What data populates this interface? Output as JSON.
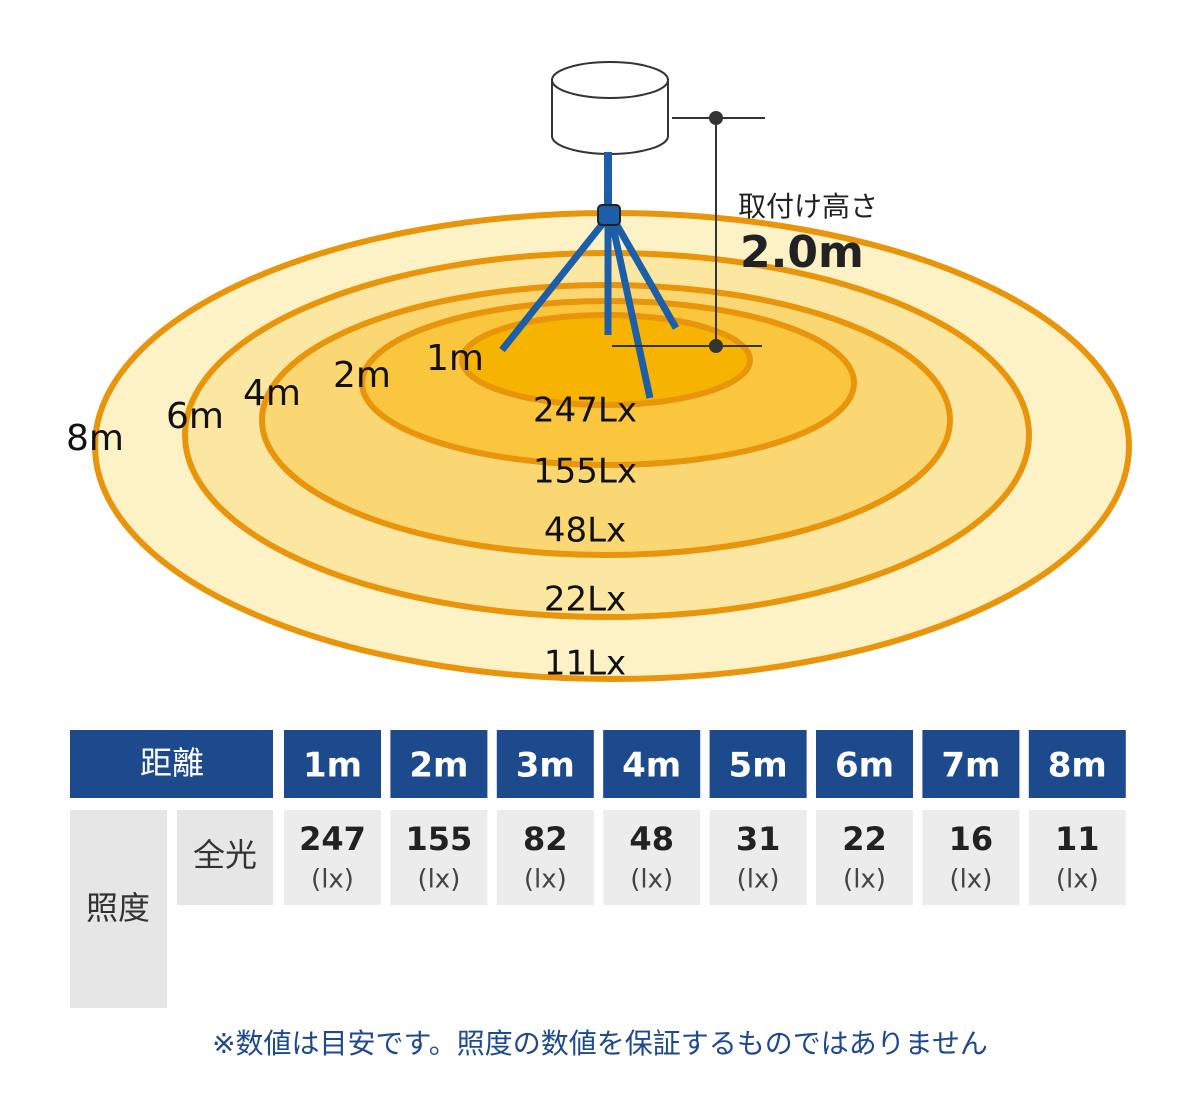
{
  "diagram": {
    "height_label": "取付け高さ",
    "height_value": "2.0m",
    "rings": [
      {
        "distance": "8m",
        "lux": "11Lx"
      },
      {
        "distance": "6m",
        "lux": "22Lx"
      },
      {
        "distance": "4m",
        "lux": "48Lx"
      },
      {
        "distance": "2m",
        "lux": "155Lx"
      },
      {
        "distance": "1m",
        "lux": "247Lx"
      }
    ]
  },
  "table": {
    "header": [
      "距離",
      "1m",
      "2m",
      "3m",
      "4m",
      "5m",
      "6m",
      "7m",
      "8m"
    ],
    "row_label": "照度",
    "sub_label": "全光",
    "values": [
      247,
      155,
      82,
      48,
      31,
      22,
      16,
      11
    ],
    "units": [
      "(lx)",
      "(lx)",
      "(lx)",
      "(lx)",
      "(lx)",
      "(lx)",
      "(lx)",
      "(lx)"
    ]
  },
  "note": "※数値は目安です。照度の数値を保証するものではありません"
}
